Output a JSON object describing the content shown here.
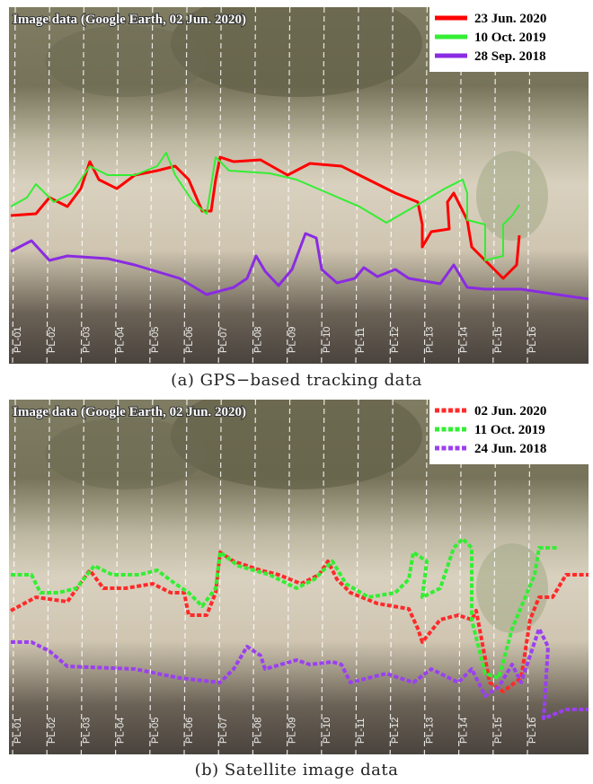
{
  "panels": [
    {
      "image_label": "Image data (Google Earth, 02 Jun. 2020)",
      "legend": [
        {
          "label": "23 Jun. 2020",
          "color": "#ff0000"
        },
        {
          "label": "10 Oct. 2019",
          "color": "#33ee33"
        },
        {
          "label": "28 Sep. 2018",
          "color": "#8a2be2"
        }
      ],
      "caption": "(a) GPS−based tracking data"
    },
    {
      "image_label": "Image data (Google Earth, 02 Jun. 2020)",
      "legend": [
        {
          "label": "02 Jun. 2020",
          "color": "#ff2a2a"
        },
        {
          "label": "11 Oct. 2019",
          "color": "#33ee33"
        },
        {
          "label": "24 Jun. 2018",
          "color": "#9a40f0"
        }
      ],
      "caption": "(b) Satellite image data"
    }
  ],
  "profiles": [
    "PL-01",
    "PL-02",
    "PL-03",
    "PL-04",
    "PL-05",
    "PL-06",
    "PL-07",
    "PL-08",
    "PL-09",
    "PL-10",
    "PL-11",
    "PL-12",
    "PL-13",
    "PL-14",
    "PL-15",
    "PL-16"
  ]
}
